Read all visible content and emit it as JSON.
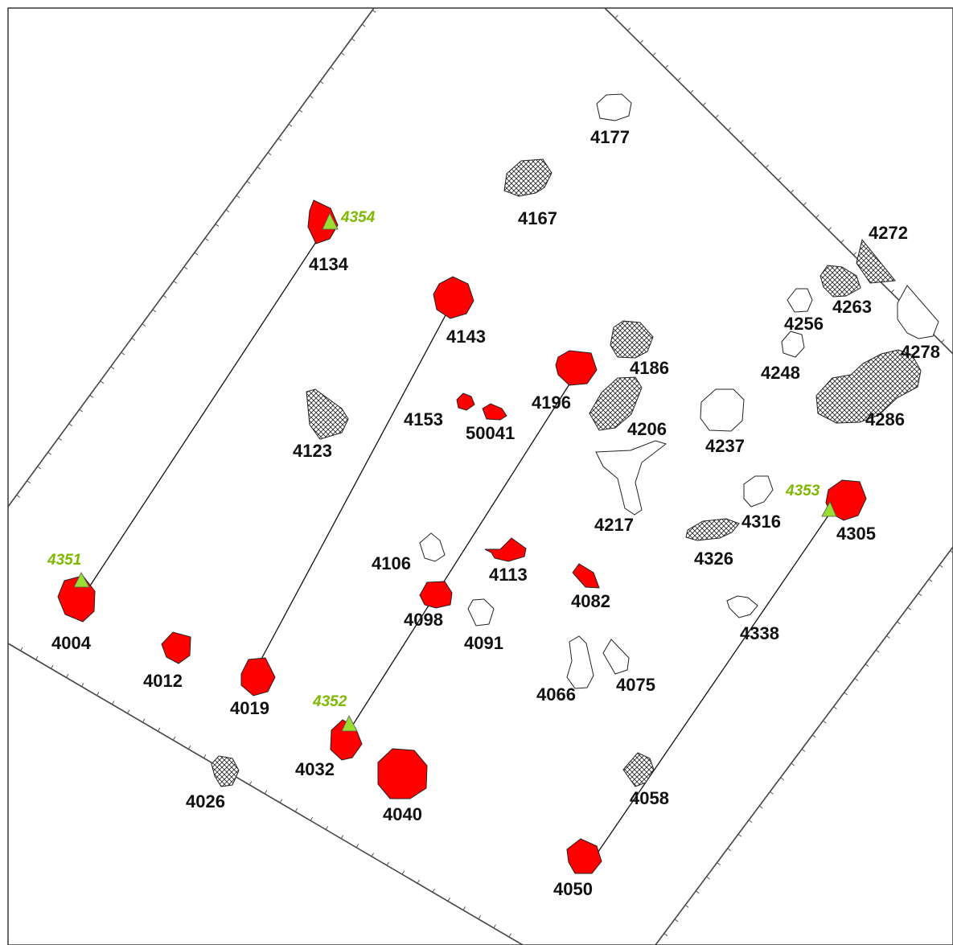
{
  "features": [
    {
      "id": "4004",
      "style": "red"
    },
    {
      "id": "4012",
      "style": "red"
    },
    {
      "id": "4019",
      "style": "red"
    },
    {
      "id": "4026",
      "style": "hatched"
    },
    {
      "id": "4032",
      "style": "red"
    },
    {
      "id": "4040",
      "style": "red"
    },
    {
      "id": "4050",
      "style": "red"
    },
    {
      "id": "4058",
      "style": "hatched"
    },
    {
      "id": "4066",
      "style": "white"
    },
    {
      "id": "4075",
      "style": "white"
    },
    {
      "id": "4082",
      "style": "red"
    },
    {
      "id": "4091",
      "style": "white"
    },
    {
      "id": "4098",
      "style": "red"
    },
    {
      "id": "4106",
      "style": "white"
    },
    {
      "id": "4113",
      "style": "red"
    },
    {
      "id": "4123",
      "style": "hatched"
    },
    {
      "id": "4134",
      "style": "red"
    },
    {
      "id": "4143",
      "style": "red"
    },
    {
      "id": "4153",
      "style": "red"
    },
    {
      "id": "50041",
      "style": "red"
    },
    {
      "id": "4167",
      "style": "hatched"
    },
    {
      "id": "4177",
      "style": "white"
    },
    {
      "id": "4186",
      "style": "hatched"
    },
    {
      "id": "4196",
      "style": "red"
    },
    {
      "id": "4206",
      "style": "hatched"
    },
    {
      "id": "4217",
      "style": "white"
    },
    {
      "id": "4237",
      "style": "white"
    },
    {
      "id": "4248",
      "style": "white"
    },
    {
      "id": "4256",
      "style": "white"
    },
    {
      "id": "4263",
      "style": "hatched"
    },
    {
      "id": "4272",
      "style": "hatched"
    },
    {
      "id": "4278",
      "style": "white"
    },
    {
      "id": "4286",
      "style": "hatched"
    },
    {
      "id": "4305",
      "style": "red"
    },
    {
      "id": "4316",
      "style": "white"
    },
    {
      "id": "4326",
      "style": "hatched"
    },
    {
      "id": "4338",
      "style": "white"
    }
  ],
  "markers": [
    "4351",
    "4352",
    "4353",
    "4354"
  ],
  "connections": [
    {
      "from": "4351",
      "to": "4354"
    },
    {
      "from": "4019",
      "to": "4143"
    },
    {
      "from": "4352",
      "to": "4196"
    },
    {
      "from": "4050",
      "to": "4305"
    }
  ],
  "colors": {
    "feature_red": "#ff0000",
    "marker_green": "#99dd33",
    "marker_label": "#7fb800"
  }
}
